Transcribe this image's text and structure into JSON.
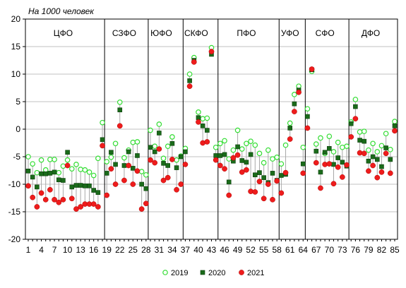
{
  "chart_data": {
    "type": "scatter",
    "unit_label": "На 1000 человек",
    "ylim": [
      -20,
      20
    ],
    "xlim": [
      1,
      85
    ],
    "y_ticks": [
      20,
      15,
      10,
      5,
      0,
      -5,
      -10,
      -15,
      -20
    ],
    "x_ticks": [
      1,
      4,
      7,
      10,
      13,
      16,
      19,
      22,
      25,
      28,
      31,
      34,
      37,
      40,
      43,
      46,
      49,
      52,
      55,
      58,
      61,
      64,
      67,
      70,
      73,
      76,
      79,
      82,
      85
    ],
    "grid": true,
    "legend_position": "bottom",
    "group_separators": [
      18,
      28,
      36,
      44,
      58,
      64,
      74
    ],
    "groups": [
      {
        "label": "ЦФО",
        "x": 9
      },
      {
        "label": "СЗФО",
        "x": 23
      },
      {
        "label": "ЮФО",
        "x": 31.5
      },
      {
        "label": "СКФО",
        "x": 39.5
      },
      {
        "label": "ПФО",
        "x": 51
      },
      {
        "label": "УФО",
        "x": 61
      },
      {
        "label": "СФО",
        "x": 69
      },
      {
        "label": "ДФО",
        "x": 79.5
      }
    ],
    "series": [
      {
        "name": "2019",
        "color": "#33dd33",
        "marker": "open-circle",
        "values": [
          -5.0,
          -6.3,
          -7.9,
          -5.6,
          -7.4,
          -5.5,
          -5.5,
          -7.9,
          -6.7,
          -5.6,
          -7.2,
          -6.4,
          -7.3,
          -7.4,
          -7.8,
          -8.4,
          -5.3,
          1.2,
          -5.9,
          -5.1,
          -2.6,
          4.9,
          -5.2,
          -3.8,
          -2.4,
          -2.3,
          -7.7,
          -8.3,
          -0.2,
          -3.1,
          0.9,
          -5.3,
          -3.1,
          -1.4,
          -5.6,
          -4.9,
          -3.5,
          10.0,
          13.0,
          3.1,
          1.9,
          2.0,
          14.8,
          -3.3,
          -2.6,
          -2.1,
          -5.4,
          -3.8,
          -0.2,
          -3.6,
          -2.6,
          -2.2,
          -2.9,
          -4.4,
          -6.1,
          -3.8,
          -5.4,
          -5.1,
          -6.3,
          -2.9,
          1.1,
          6.3,
          7.8,
          -3.3,
          3.7,
          10.5,
          -2.7,
          -1.6,
          -4.4,
          -1.3,
          -4.1,
          -2.4,
          -3.3,
          -3.1,
          1.3,
          5.4,
          -0.5,
          -0.4,
          -3.8,
          -2.6,
          -4.1,
          -3.0,
          -0.8,
          -3.7,
          1.4
        ]
      },
      {
        "name": "2020",
        "color": "#1a6b1a",
        "marker": "square",
        "values": [
          -7.6,
          -8.7,
          -10.5,
          -8.1,
          -8.1,
          -8.0,
          -7.8,
          -9.2,
          -9.3,
          -4.2,
          -10.5,
          -10.2,
          -10.2,
          -10.3,
          -10.3,
          -11.1,
          -11.5,
          -1.9,
          -8.0,
          -4.2,
          -6.4,
          3.5,
          -6.6,
          -4.1,
          -7.1,
          -4.8,
          -10.0,
          -10.8,
          -3.3,
          -4.1,
          -0.7,
          -6.2,
          -6.6,
          -2.6,
          -7.0,
          -5.0,
          -4.1,
          8.8,
          12.5,
          2.1,
          0.6,
          -0.2,
          13.6,
          -4.8,
          -4.8,
          -4.6,
          -9.6,
          -5.8,
          -3.2,
          -5.7,
          -6.0,
          -4.6,
          -8.3,
          -7.9,
          -8.8,
          -9.7,
          -8.0,
          -9.3,
          -8.4,
          -8.2,
          0.2,
          4.6,
          7.1,
          -6.3,
          2.3,
          10.8,
          -4.0,
          -7.8,
          -4.2,
          -3.5,
          -6.4,
          -5.2,
          -6.0,
          -6.7,
          1.0,
          4.1,
          -2.0,
          -2.2,
          -5.8,
          -5.0,
          -5.5,
          -6.8,
          -3.4,
          -5.5,
          0.6
        ]
      },
      {
        "name": "2021",
        "color": "#ee1c1c",
        "marker": "filled-circle",
        "values": [
          -10.3,
          -12.4,
          -14.1,
          -11.6,
          -12.8,
          -11.0,
          -12.8,
          -13.3,
          -12.8,
          -6.6,
          -12.6,
          -14.5,
          -14.1,
          -13.6,
          -13.6,
          -13.6,
          -14.1,
          -3.0,
          -12.0,
          -7.2,
          -10.0,
          0.6,
          -9.3,
          -6.6,
          -10.0,
          -7.6,
          -14.5,
          -13.5,
          -5.6,
          -6.1,
          -3.6,
          -9.3,
          -8.8,
          -5.5,
          -11.0,
          -10.0,
          -6.4,
          7.8,
          12.2,
          1.3,
          -2.5,
          -2.3,
          14.1,
          -5.6,
          -6.6,
          -7.2,
          -12.0,
          -5.2,
          -4.7,
          -7.8,
          -7.4,
          -11.3,
          -11.4,
          -9.5,
          -12.6,
          -10.0,
          -12.8,
          -9.4,
          -11.6,
          -7.9,
          -1.8,
          3.2,
          6.7,
          -8.0,
          0.2,
          10.9,
          -6.1,
          -10.7,
          -6.4,
          -6.3,
          -9.9,
          -6.9,
          -8.7,
          -6.5,
          -1.4,
          1.9,
          -4.3,
          -4.4,
          -7.6,
          -6.6,
          -8.8,
          -7.8,
          -4.4,
          -8.0,
          -0.3
        ]
      }
    ]
  }
}
